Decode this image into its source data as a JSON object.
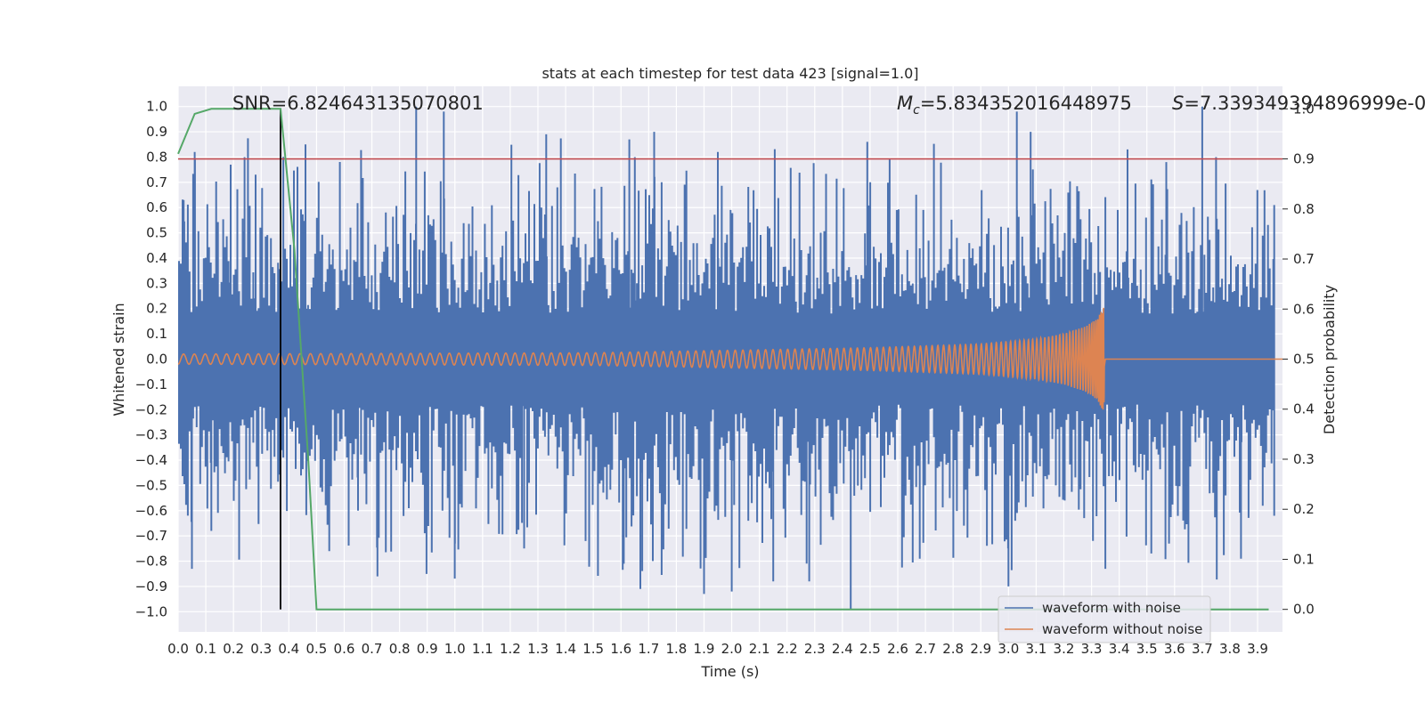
{
  "chart_data": {
    "type": "line",
    "title": "stats at each timestep for test data 423 [signal=1.0]",
    "xlabel": "Time (s)",
    "ylabel": "Whitened strain",
    "ylabel_right": "Detection probability",
    "xlim": [
      0.0,
      3.99
    ],
    "ylim": [
      -1.08,
      1.08
    ],
    "ylim_right": [
      -0.045,
      1.045
    ],
    "x_ticks": [
      "0.0",
      "0.1",
      "0.2",
      "0.3",
      "0.4",
      "0.5",
      "0.6",
      "0.7",
      "0.8",
      "0.9",
      "1.0",
      "1.1",
      "1.2",
      "1.3",
      "1.4",
      "1.5",
      "1.6",
      "1.7",
      "1.8",
      "1.9",
      "2.0",
      "2.1",
      "2.2",
      "2.3",
      "2.4",
      "2.5",
      "2.6",
      "2.7",
      "2.8",
      "2.9",
      "3.0",
      "3.1",
      "3.2",
      "3.3",
      "3.4",
      "3.5",
      "3.6",
      "3.7",
      "3.8",
      "3.9"
    ],
    "y_ticks": [
      "1.0",
      "0.9",
      "0.8",
      "0.7",
      "0.6",
      "0.5",
      "0.4",
      "0.3",
      "0.2",
      "0.1",
      "0.0",
      "−0.1",
      "−0.2",
      "−0.3",
      "−0.4",
      "−0.5",
      "−0.6",
      "−0.7",
      "−0.8",
      "−0.9",
      "−1.0"
    ],
    "y_ticks_right": [
      "1.0",
      "0.9",
      "0.8",
      "0.7",
      "0.6",
      "0.5",
      "0.4",
      "0.3",
      "0.2",
      "0.1",
      "0.0"
    ],
    "annotations": {
      "snr": "SNR=6.824643135070801",
      "mc_symbol": "M",
      "mc_sub": "c",
      "mc_value": "=5.834352016448975",
      "s_symbol": "S",
      "s_value": "=7.339349394896999e-0"
    },
    "series": [
      {
        "name": "waveform with noise",
        "color": "#4C72B0",
        "axis": "left",
        "description": "whitened noisy strain, roughly within -1 to 1",
        "peaks_high": [
          [
            0.02,
            0.63
          ],
          [
            0.06,
            0.82
          ],
          [
            0.19,
            0.77
          ],
          [
            0.24,
            0.8
          ],
          [
            0.28,
            0.73
          ],
          [
            0.38,
            0.75
          ],
          [
            0.46,
            0.85
          ],
          [
            0.86,
            1.0
          ],
          [
            0.96,
            0.98
          ],
          [
            1.33,
            0.89
          ],
          [
            1.63,
            0.87
          ],
          [
            1.65,
            0.8
          ],
          [
            1.72,
            0.9
          ],
          [
            1.95,
            0.82
          ],
          [
            2.49,
            0.86
          ],
          [
            3.03,
            0.98
          ],
          [
            3.08,
            0.9
          ],
          [
            3.43,
            0.83
          ],
          [
            3.57,
            0.78
          ],
          [
            3.7,
            1.0
          ],
          [
            3.75,
            0.8
          ],
          [
            3.96,
            0.61
          ]
        ],
        "peaks_low": [
          [
            0.05,
            -0.83
          ],
          [
            0.12,
            -0.68
          ],
          [
            0.65,
            -0.6
          ],
          [
            0.72,
            -0.86
          ],
          [
            1.0,
            -0.73
          ],
          [
            1.25,
            -0.75
          ],
          [
            1.61,
            -0.81
          ],
          [
            1.67,
            -0.91
          ],
          [
            1.9,
            -0.93
          ],
          [
            2.0,
            -0.92
          ],
          [
            2.15,
            -0.88
          ],
          [
            2.28,
            -0.88
          ],
          [
            2.43,
            -0.99
          ],
          [
            3.0,
            -0.9
          ],
          [
            3.35,
            -0.83
          ],
          [
            3.58,
            -0.73
          ],
          [
            3.84,
            -0.79
          ],
          [
            3.96,
            -0.62
          ]
        ]
      },
      {
        "name": "waveform without noise",
        "color": "#DD8452",
        "axis": "left",
        "description": "noise-free chirp, amplitude growing to merger",
        "envelope": [
          [
            0.0,
            0.02
          ],
          [
            1.5,
            0.025
          ],
          [
            2.0,
            0.035
          ],
          [
            2.5,
            0.045
          ],
          [
            2.9,
            0.06
          ],
          [
            3.1,
            0.08
          ],
          [
            3.2,
            0.1
          ],
          [
            3.28,
            0.13
          ],
          [
            3.32,
            0.16
          ],
          [
            3.345,
            0.21
          ],
          [
            3.35,
            0.0
          ]
        ],
        "merger_time": 3.35
      },
      {
        "name": "detection probability",
        "color": "#55A868",
        "axis": "right",
        "points": [
          [
            0.0,
            0.91
          ],
          [
            0.06,
            0.99
          ],
          [
            0.12,
            1.0
          ],
          [
            0.37,
            1.0
          ],
          [
            0.42,
            0.72
          ],
          [
            0.47,
            0.3
          ],
          [
            0.5,
            0.0
          ],
          [
            3.94,
            0.0
          ]
        ]
      },
      {
        "name": "threshold",
        "color": "#C44E52",
        "axis": "right",
        "y": 0.9
      },
      {
        "name": "detection time",
        "color": "#000000",
        "axis": "right",
        "x": 0.37,
        "y_range": [
          0.0,
          1.0
        ]
      }
    ],
    "legend": {
      "location": "lower-right",
      "entries": [
        {
          "label": "waveform with noise",
          "color": "#4C72B0"
        },
        {
          "label": "waveform without noise",
          "color": "#DD8452"
        }
      ]
    },
    "grid": true,
    "style": "seaborn-darkgrid"
  }
}
